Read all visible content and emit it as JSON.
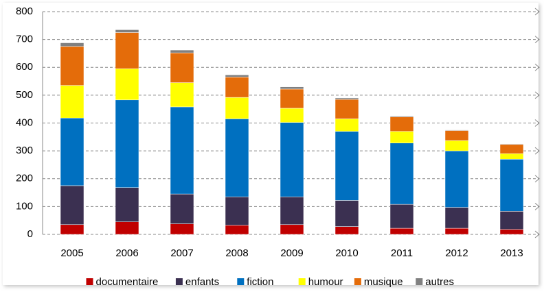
{
  "chart_data": {
    "type": "stacked_bar",
    "categories": [
      "2005",
      "2006",
      "2007",
      "2008",
      "2009",
      "2010",
      "2011",
      "2012",
      "2013"
    ],
    "series": [
      {
        "name": "documentaire",
        "color": "#c00000",
        "values": [
          35,
          45,
          38,
          33,
          35,
          28,
          22,
          22,
          18
        ]
      },
      {
        "name": "enfants",
        "color": "#3b3051",
        "values": [
          140,
          123,
          107,
          102,
          100,
          94,
          86,
          75,
          65
        ]
      },
      {
        "name": "fiction",
        "color": "#0070c0",
        "values": [
          243,
          315,
          313,
          280,
          267,
          248,
          220,
          203,
          187
        ]
      },
      {
        "name": "humour",
        "color": "#ffff00",
        "values": [
          117,
          112,
          87,
          77,
          51,
          45,
          42,
          37,
          20
        ]
      },
      {
        "name": "musique",
        "color": "#e46c0a",
        "values": [
          140,
          130,
          107,
          73,
          69,
          70,
          52,
          36,
          33
        ]
      },
      {
        "name": "autres",
        "color": "#808080",
        "values": [
          13,
          10,
          10,
          8,
          8,
          5,
          3,
          2,
          2
        ]
      }
    ],
    "ylim": [
      0,
      800
    ],
    "yticks": [
      0,
      100,
      200,
      300,
      400,
      500,
      600,
      700,
      800
    ],
    "grid": true,
    "legend": "bottom"
  }
}
